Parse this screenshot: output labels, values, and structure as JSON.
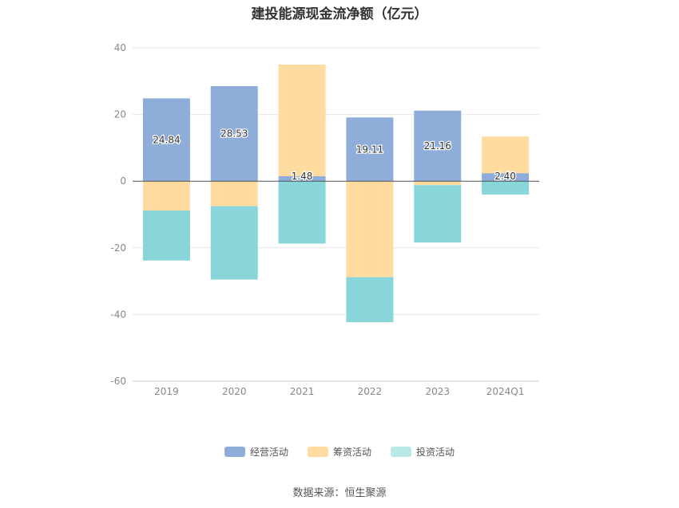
{
  "chart_data": {
    "type": "bar",
    "stacked": true,
    "title": "建投能源现金流净额（亿元）",
    "categories": [
      "2019",
      "2020",
      "2021",
      "2022",
      "2023",
      "2024Q1"
    ],
    "series": [
      {
        "name": "经营活动",
        "values": [
          24.84,
          28.53,
          1.48,
          19.11,
          21.16,
          2.4
        ],
        "color": "#8eadd9"
      },
      {
        "name": "筹资活动",
        "values": [
          -8.8,
          -7.5,
          33.5,
          -28.8,
          -1.2,
          11.0
        ],
        "color": "#ffdba0"
      },
      {
        "name": "投资活动",
        "values": [
          -15.0,
          -22.0,
          -18.7,
          -13.5,
          -17.2,
          -4.0
        ],
        "color": "#88d6d9"
      }
    ],
    "ylim": [
      -60,
      40
    ],
    "yticks": [
      40,
      20,
      0,
      -20,
      -40,
      -60
    ],
    "grid": true,
    "legend_position": "bottom"
  },
  "legend": [
    {
      "label": "经营活动",
      "color": "#8eadd9"
    },
    {
      "label": "筹资活动",
      "color": "#ffdba0"
    },
    {
      "label": "投资活动",
      "color": "#b9e8e8"
    }
  ],
  "source": "数据来源：恒生聚源"
}
